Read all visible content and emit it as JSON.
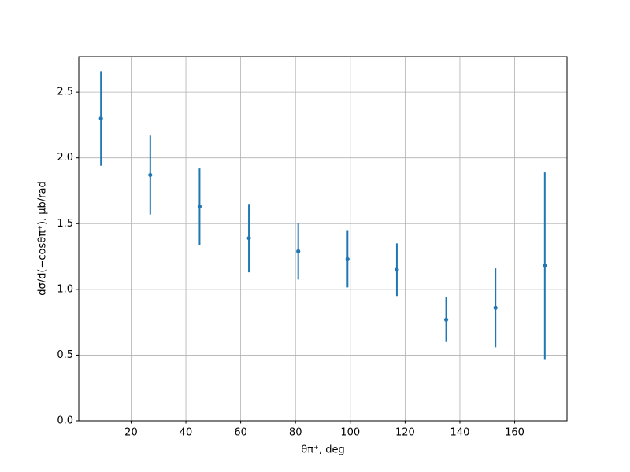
{
  "chart_data": {
    "type": "errorbar",
    "x_label": "θπ⁺, deg",
    "y_label": "dσ/d(−cosθπ⁺), μb/rad",
    "x": [
      9,
      27,
      45,
      63,
      81,
      99,
      117,
      135,
      153,
      171
    ],
    "series": [
      {
        "color": "#1f77b4",
        "values": [
          2.3,
          1.87,
          1.63,
          1.39,
          1.29,
          1.23,
          1.15,
          0.77,
          0.86,
          1.18
        ],
        "errors": [
          0.36,
          0.3,
          0.29,
          0.26,
          0.215,
          0.215,
          0.2,
          0.17,
          0.3,
          0.71
        ]
      }
    ],
    "xlim": [
      0.9,
      179.1
    ],
    "ylim": [
      0,
      2.77
    ],
    "xticks": [
      20,
      40,
      60,
      80,
      100,
      120,
      140,
      160
    ],
    "yticks": [
      {
        "value": 0,
        "label": "0.0"
      },
      0.5,
      {
        "value": 1,
        "label": "1.0"
      },
      1.5,
      {
        "value": 2,
        "label": "2.0"
      },
      2.5
    ],
    "grid": true
  }
}
